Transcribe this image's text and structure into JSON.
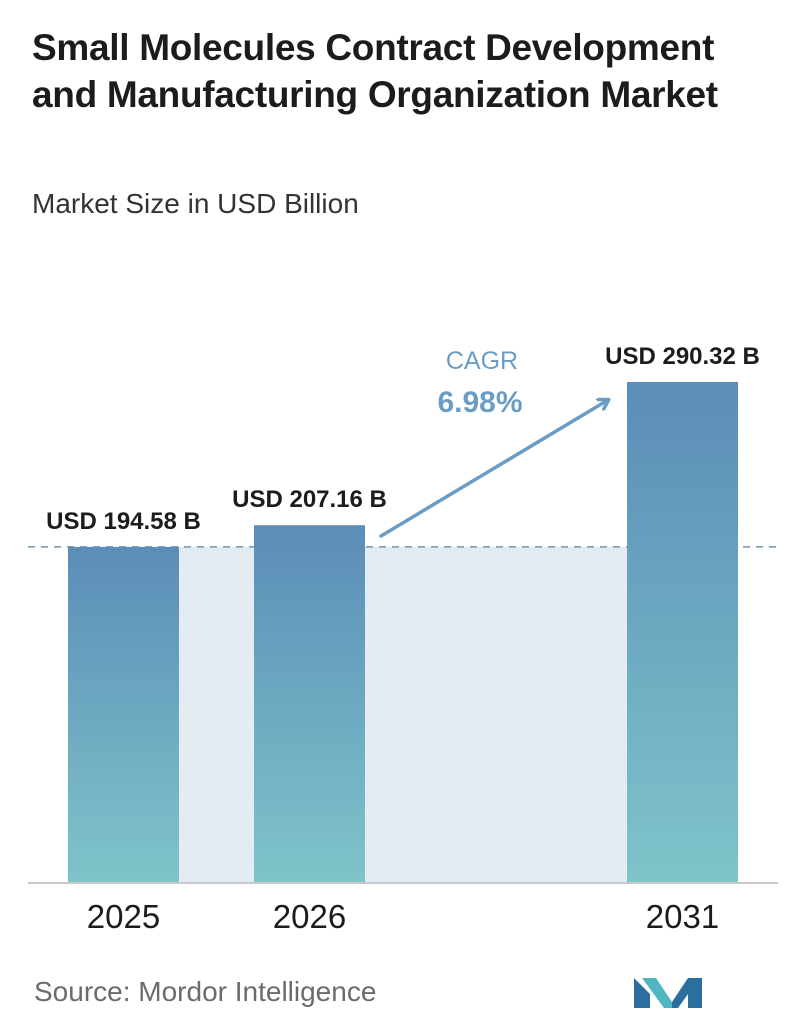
{
  "header": {
    "title": "Small Molecules Contract Development and Manufacturing Organization Market",
    "subtitle": "Market Size in USD Billion"
  },
  "chart_data": {
    "type": "bar",
    "categories": [
      "2025",
      "2026",
      "2031"
    ],
    "values": [
      194.58,
      207.16,
      290.32
    ],
    "value_labels": [
      "USD 194.58 B",
      "USD 207.16 B",
      "USD 290.32 B"
    ],
    "annotation": {
      "label": "CAGR",
      "value": "6.98%"
    },
    "ylim": [
      0,
      290.32
    ],
    "grid": false,
    "legend": "none",
    "colors": {
      "bar_top": "#5b8db8",
      "bar_bottom": "#7ec4c9",
      "band": "#e3ebf3",
      "arrow": "#6b9dc4",
      "dashed": "#6f96b3"
    }
  },
  "footer": {
    "source": "Source:  Mordor Intelligence"
  },
  "logo": {
    "icon": "mordor-intelligence-logo-icon"
  }
}
